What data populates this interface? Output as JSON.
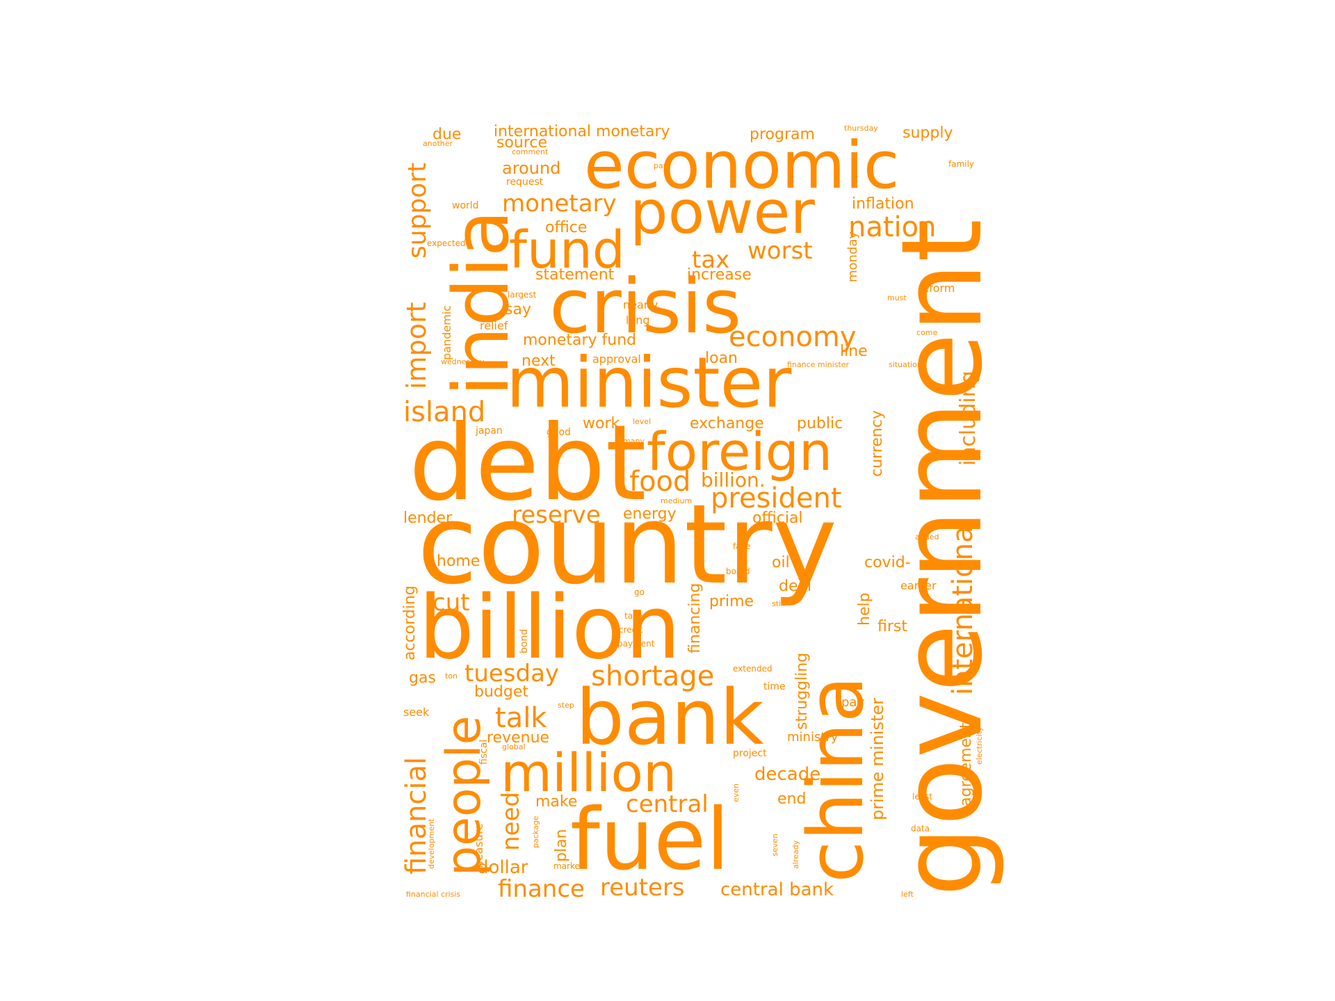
{
  "color": "#ff8c00",
  "words": [
    "country",
    "debt",
    "billion",
    "government",
    "crisis",
    "india",
    "minister",
    "china",
    "fuel",
    "bank",
    "economic",
    "power",
    "foreign",
    "fund",
    "million",
    "people",
    "president",
    "nation",
    "worst",
    "tax",
    "island",
    "economy",
    "monetary",
    "international",
    "import",
    "support",
    "shortage",
    "tuesday",
    "talk",
    "central",
    "reserve",
    "food",
    "billion.",
    "cut",
    "financial",
    "including",
    "prime minister",
    "need",
    "dollar",
    "finance",
    "reuters",
    "central bank",
    "decade",
    "due",
    "international monetary",
    "source",
    "program",
    "supply",
    "around",
    "inflation",
    "office",
    "statement",
    "increase",
    "say",
    "monetary fund",
    "next",
    "approval",
    "loan",
    "line",
    "exchange",
    "public",
    "work",
    "currency",
    "energy",
    "official",
    "lender",
    "home",
    "oil",
    "covid-",
    "deal",
    "earlier",
    "according",
    "prime",
    "first",
    "help",
    "financing",
    "struggling",
    "gas",
    "budget",
    "seek",
    "revenue",
    "fiscal",
    "measure",
    "make",
    "plan",
    "end",
    "ministry",
    "project",
    "time",
    "pay",
    "agreement",
    "world",
    "request",
    "expected",
    "pandemic",
    "relief",
    "largest",
    "nearly",
    "long",
    "wednesday",
    "japan",
    "good",
    "level",
    "many",
    "medium",
    "face",
    "board",
    "go",
    "still",
    "take",
    "credit",
    "payment",
    "extended",
    "step",
    "bond",
    "ton",
    "global",
    "development",
    "package",
    "market",
    "already",
    "seven",
    "even",
    "least",
    "data",
    "left",
    "financial crisis",
    "thursday",
    "another",
    "comment",
    "part",
    "family",
    "reform",
    "must",
    "come",
    "finance minister",
    "situation",
    "added",
    "electricity",
    "monday"
  ]
}
